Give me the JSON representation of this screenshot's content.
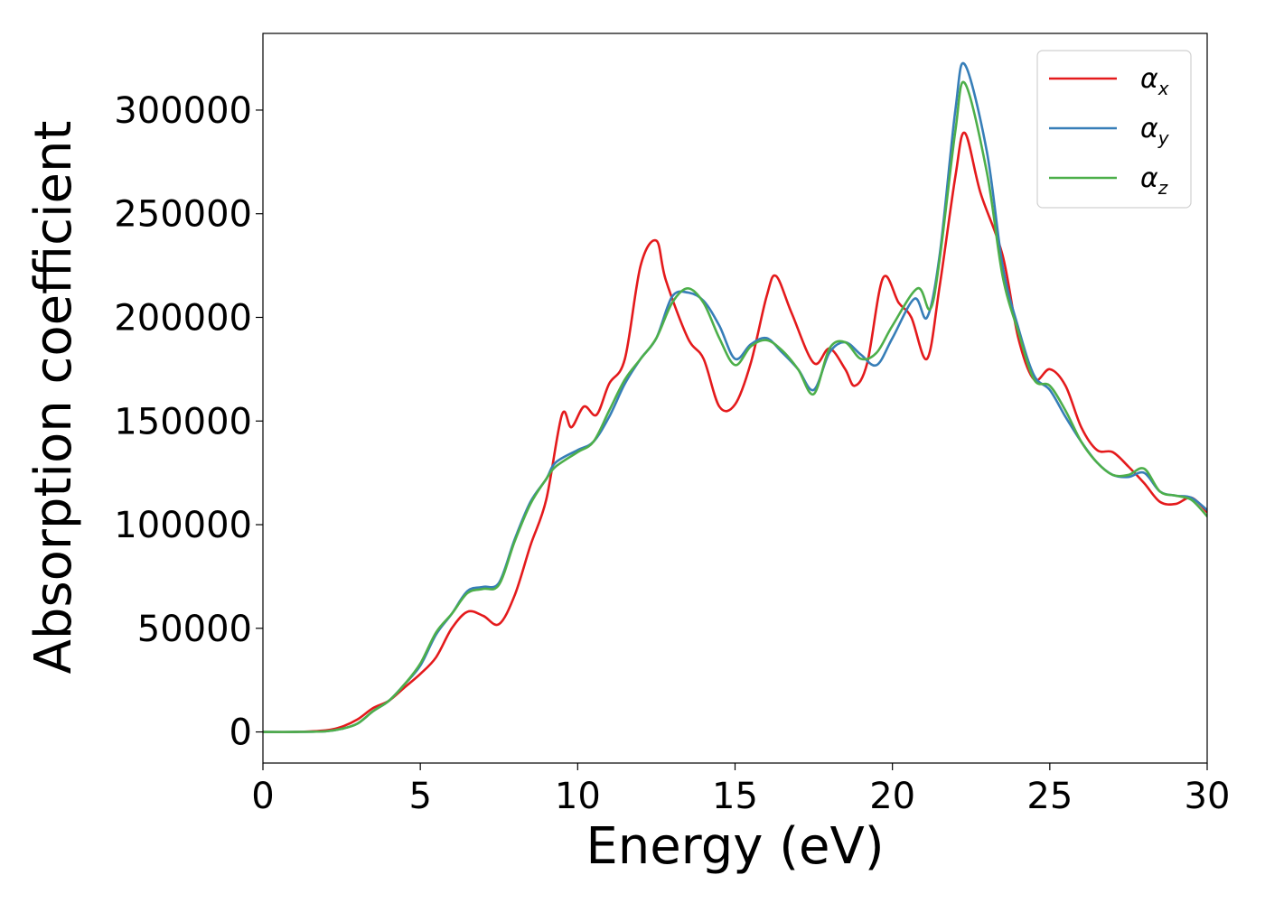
{
  "chart_data": {
    "type": "line",
    "xlabel": "Energy (eV)",
    "ylabel": "Absorption coefficient",
    "xlim": [
      0,
      30
    ],
    "ylim": [
      -15000,
      337000
    ],
    "xticks": [
      0,
      5,
      10,
      15,
      20,
      25,
      30
    ],
    "yticks": [
      0,
      50000,
      100000,
      150000,
      200000,
      250000,
      300000
    ],
    "grid": false,
    "legend_position": "top-right",
    "series": [
      {
        "name": "α",
        "subscript": "x",
        "color": "#e41a1c",
        "points": [
          [
            0,
            0
          ],
          [
            1,
            0
          ],
          [
            2,
            800
          ],
          [
            2.5,
            2500
          ],
          [
            3,
            6000
          ],
          [
            3.5,
            11500
          ],
          [
            4,
            15000
          ],
          [
            4.5,
            21500
          ],
          [
            5,
            28000
          ],
          [
            5.5,
            36000
          ],
          [
            6,
            50000
          ],
          [
            6.5,
            58000
          ],
          [
            7,
            56000
          ],
          [
            7.5,
            52000
          ],
          [
            8,
            66000
          ],
          [
            8.5,
            90000
          ],
          [
            9,
            112000
          ],
          [
            9.5,
            153000
          ],
          [
            9.8,
            147000
          ],
          [
            10.2,
            157000
          ],
          [
            10.6,
            153000
          ],
          [
            11,
            168000
          ],
          [
            11.5,
            180000
          ],
          [
            12,
            225000
          ],
          [
            12.5,
            237000
          ],
          [
            12.8,
            218000
          ],
          [
            13.5,
            190000
          ],
          [
            14,
            180000
          ],
          [
            14.5,
            157000
          ],
          [
            15,
            158000
          ],
          [
            15.5,
            178000
          ],
          [
            16,
            210000
          ],
          [
            16.3,
            220000
          ],
          [
            16.8,
            202000
          ],
          [
            17.5,
            178000
          ],
          [
            18,
            185000
          ],
          [
            18.5,
            175000
          ],
          [
            18.8,
            167000
          ],
          [
            19.2,
            178000
          ],
          [
            19.7,
            219000
          ],
          [
            20.2,
            207000
          ],
          [
            20.6,
            200000
          ],
          [
            21.1,
            180000
          ],
          [
            21.5,
            215000
          ],
          [
            22,
            268000
          ],
          [
            22.3,
            289000
          ],
          [
            22.8,
            260000
          ],
          [
            23.5,
            230000
          ],
          [
            24,
            190000
          ],
          [
            24.5,
            170000
          ],
          [
            25,
            175000
          ],
          [
            25.5,
            167000
          ],
          [
            26,
            147000
          ],
          [
            26.5,
            136000
          ],
          [
            27,
            135000
          ],
          [
            27.5,
            128000
          ],
          [
            28,
            120000
          ],
          [
            28.5,
            111000
          ],
          [
            29,
            110000
          ],
          [
            29.5,
            113000
          ],
          [
            30,
            106000
          ]
        ]
      },
      {
        "name": "α",
        "subscript": "y",
        "color": "#377eb8",
        "points": [
          [
            0,
            0
          ],
          [
            1,
            0
          ],
          [
            2,
            300
          ],
          [
            2.5,
            1500
          ],
          [
            3,
            4000
          ],
          [
            3.5,
            10000
          ],
          [
            4,
            15000
          ],
          [
            4.5,
            23000
          ],
          [
            5,
            32000
          ],
          [
            5.5,
            47000
          ],
          [
            6,
            57000
          ],
          [
            6.5,
            68000
          ],
          [
            7,
            70000
          ],
          [
            7.5,
            72000
          ],
          [
            8,
            93000
          ],
          [
            8.5,
            111000
          ],
          [
            9,
            122000
          ],
          [
            9.3,
            130000
          ],
          [
            10,
            136000
          ],
          [
            10.5,
            140000
          ],
          [
            11,
            152000
          ],
          [
            11.5,
            168000
          ],
          [
            12,
            180000
          ],
          [
            12.5,
            190000
          ],
          [
            13,
            210000
          ],
          [
            13.5,
            212000
          ],
          [
            14,
            208000
          ],
          [
            14.5,
            196000
          ],
          [
            15,
            180000
          ],
          [
            15.5,
            187000
          ],
          [
            16,
            190000
          ],
          [
            16.5,
            183000
          ],
          [
            17,
            175000
          ],
          [
            17.5,
            165000
          ],
          [
            18,
            183000
          ],
          [
            18.5,
            188000
          ],
          [
            19,
            182000
          ],
          [
            19.5,
            177000
          ],
          [
            20,
            190000
          ],
          [
            20.7,
            209000
          ],
          [
            21.1,
            200000
          ],
          [
            21.5,
            230000
          ],
          [
            22,
            300000
          ],
          [
            22.3,
            322000
          ],
          [
            23,
            280000
          ],
          [
            23.5,
            225000
          ],
          [
            24,
            195000
          ],
          [
            24.5,
            172000
          ],
          [
            25,
            165000
          ],
          [
            25.5,
            152000
          ],
          [
            26,
            140000
          ],
          [
            26.5,
            130000
          ],
          [
            27,
            124000
          ],
          [
            27.5,
            123000
          ],
          [
            28,
            125000
          ],
          [
            28.5,
            116000
          ],
          [
            29,
            114000
          ],
          [
            29.5,
            113000
          ],
          [
            30,
            107000
          ]
        ]
      },
      {
        "name": "α",
        "subscript": "z",
        "color": "#4daf4a",
        "points": [
          [
            0,
            0
          ],
          [
            1,
            0
          ],
          [
            2,
            300
          ],
          [
            2.5,
            1500
          ],
          [
            3,
            4000
          ],
          [
            3.5,
            10000
          ],
          [
            4,
            15000
          ],
          [
            4.5,
            23000
          ],
          [
            5,
            33000
          ],
          [
            5.5,
            48000
          ],
          [
            6,
            57000
          ],
          [
            6.5,
            67000
          ],
          [
            7,
            69000
          ],
          [
            7.5,
            71000
          ],
          [
            8,
            92000
          ],
          [
            8.5,
            110000
          ],
          [
            9,
            122000
          ],
          [
            9.3,
            128000
          ],
          [
            10,
            135000
          ],
          [
            10.5,
            140000
          ],
          [
            11,
            155000
          ],
          [
            11.5,
            170000
          ],
          [
            12,
            180000
          ],
          [
            12.5,
            190000
          ],
          [
            13,
            207000
          ],
          [
            13.5,
            214000
          ],
          [
            14,
            207000
          ],
          [
            14.5,
            190000
          ],
          [
            15,
            177000
          ],
          [
            15.5,
            186000
          ],
          [
            16,
            189000
          ],
          [
            16.5,
            184000
          ],
          [
            17,
            175000
          ],
          [
            17.5,
            163000
          ],
          [
            18,
            185000
          ],
          [
            18.5,
            188000
          ],
          [
            19,
            180000
          ],
          [
            19.5,
            183000
          ],
          [
            20,
            196000
          ],
          [
            20.8,
            214000
          ],
          [
            21.2,
            204000
          ],
          [
            21.5,
            228000
          ],
          [
            22,
            290000
          ],
          [
            22.3,
            313000
          ],
          [
            23,
            270000
          ],
          [
            23.5,
            220000
          ],
          [
            24,
            193000
          ],
          [
            24.5,
            170000
          ],
          [
            25,
            167000
          ],
          [
            25.5,
            155000
          ],
          [
            26,
            140000
          ],
          [
            26.5,
            130000
          ],
          [
            27,
            124000
          ],
          [
            27.5,
            124000
          ],
          [
            28,
            127000
          ],
          [
            28.5,
            116000
          ],
          [
            29,
            114000
          ],
          [
            29.5,
            112000
          ],
          [
            30,
            104000
          ]
        ]
      }
    ]
  }
}
